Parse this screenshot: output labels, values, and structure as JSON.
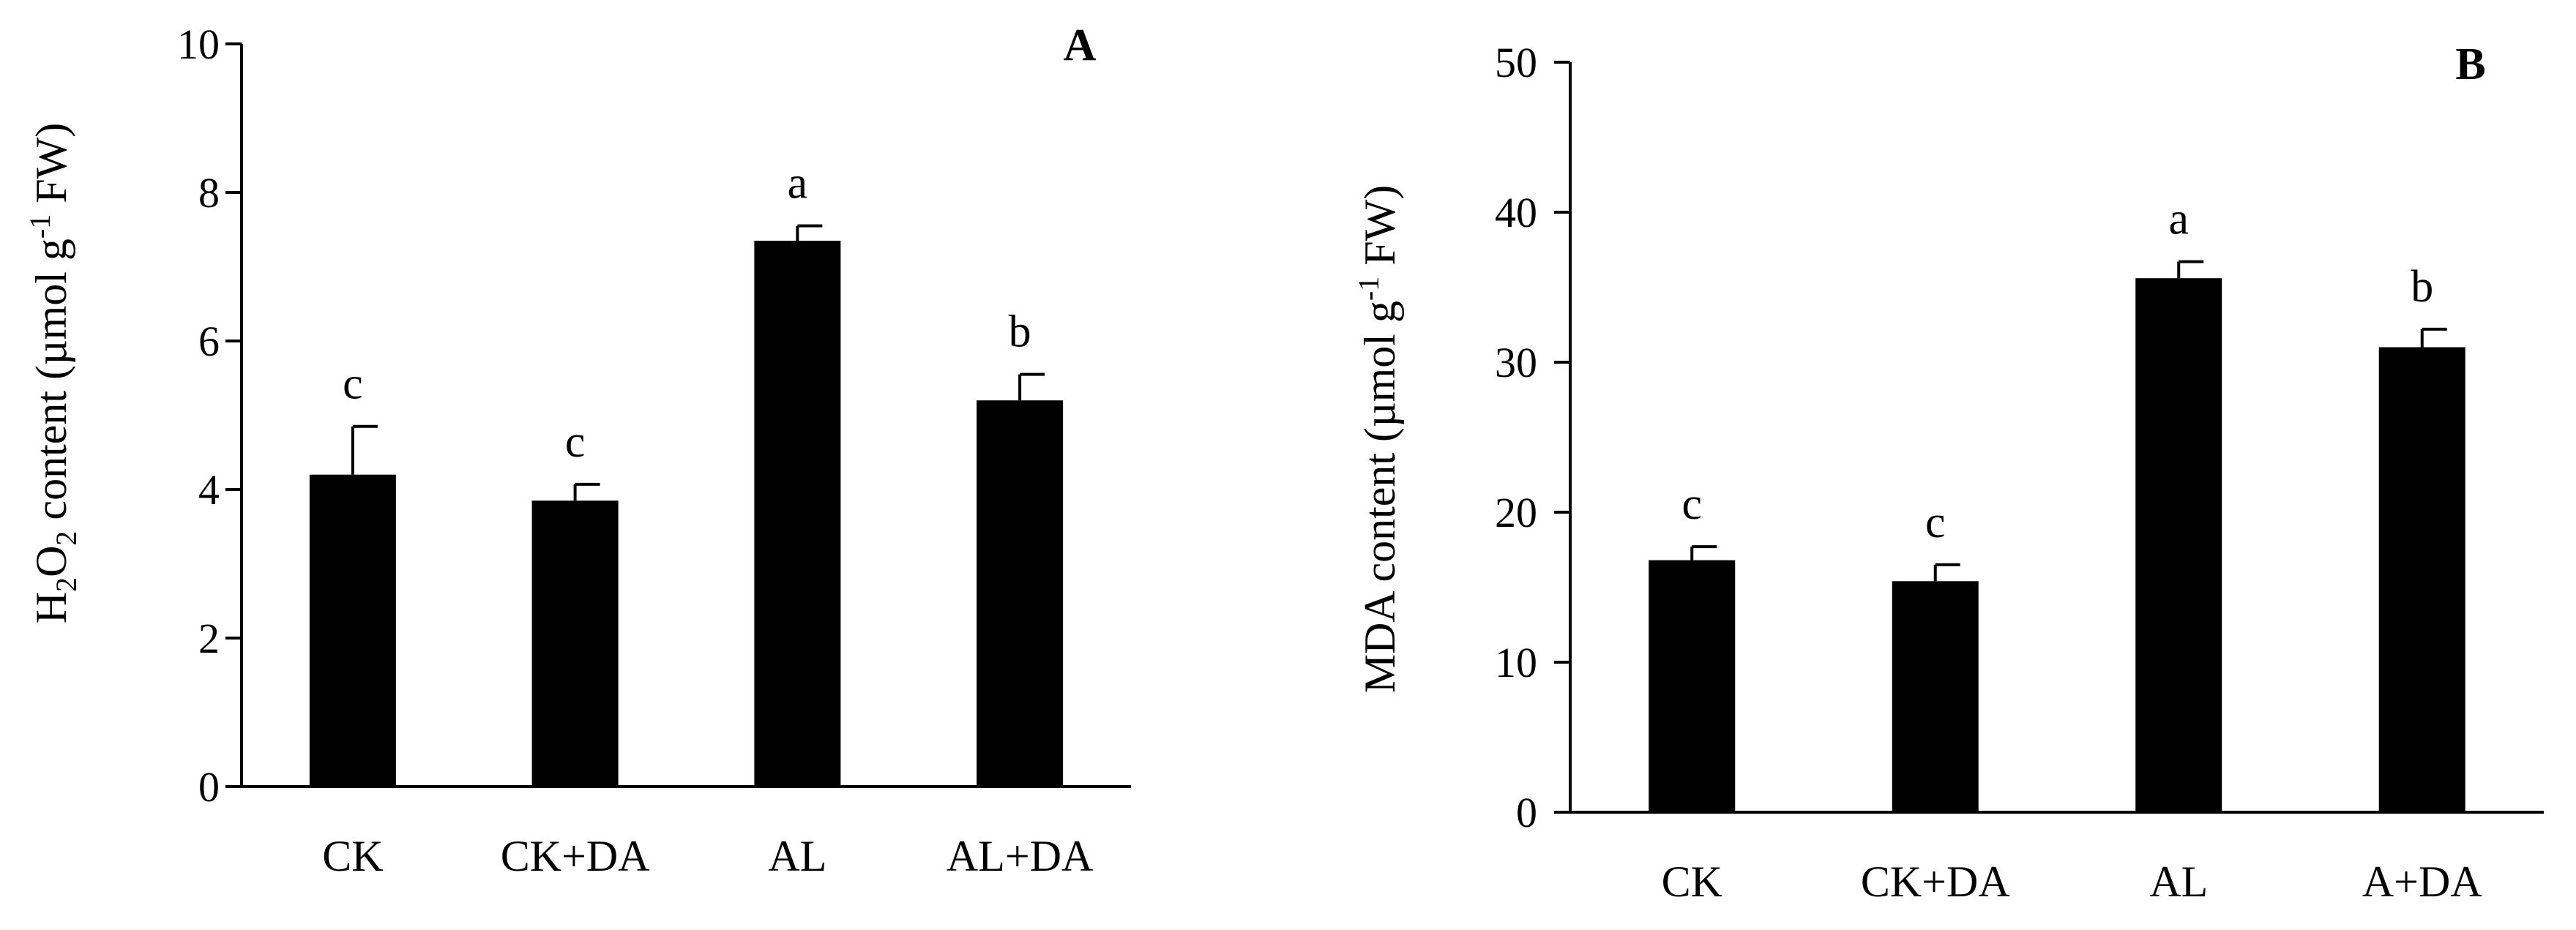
{
  "chart_data": [
    {
      "type": "bar",
      "panel_label": "A",
      "categories": [
        "CK",
        "CK+DA",
        "AL",
        "AL+DA"
      ],
      "values": [
        4.2,
        3.85,
        7.35,
        5.2
      ],
      "errors": [
        0.65,
        0.22,
        0.2,
        0.35
      ],
      "significance": [
        "c",
        "c",
        "a",
        "b"
      ],
      "ylabel_parts": [
        "H",
        "2",
        "O",
        "2",
        " content (µmol g",
        "-1",
        " FW)"
      ],
      "ylim": [
        0,
        10
      ],
      "yticks": [
        0,
        2,
        4,
        6,
        8,
        10
      ],
      "bar_color": "#000000",
      "grid": false
    },
    {
      "type": "bar",
      "panel_label": "B",
      "categories": [
        "CK",
        "CK+DA",
        "AL",
        "A+DA"
      ],
      "values": [
        16.8,
        15.4,
        35.6,
        31.0
      ],
      "errors": [
        0.9,
        1.1,
        1.1,
        1.2
      ],
      "significance": [
        "c",
        "c",
        "a",
        "b"
      ],
      "ylabel_parts": [
        "MDA content (µmol g",
        "-1",
        " FW)"
      ],
      "ylim": [
        0,
        50
      ],
      "yticks": [
        0,
        10,
        20,
        30,
        40,
        50
      ],
      "bar_color": "#000000",
      "grid": false
    }
  ]
}
